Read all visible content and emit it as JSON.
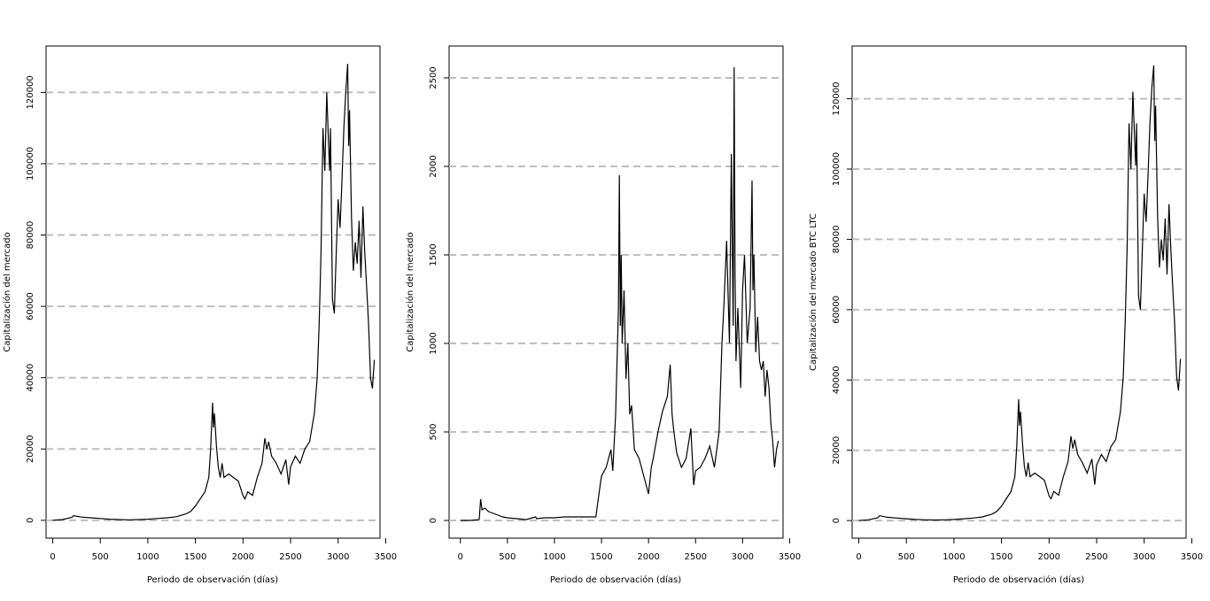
{
  "chart_data": [
    {
      "type": "line",
      "xlabel": "Periodo de observación (días)",
      "ylabel": "Capitalización del mercado",
      "xlim": [
        -70,
        3440
      ],
      "ylim": [
        -5000,
        133000
      ],
      "x_ticks": [
        0,
        500,
        1000,
        1500,
        2000,
        2500,
        3000,
        3500
      ],
      "x_tick_labels": [
        "0",
        "500",
        "1000",
        "1500",
        "2000",
        "2500",
        "3000",
        "3500"
      ],
      "y_ticks": [
        0,
        20000,
        40000,
        60000,
        80000,
        100000,
        120000
      ],
      "y_tick_labels": [
        "0",
        "20000",
        "40000",
        "60000",
        "80000",
        "100000",
        "120000"
      ],
      "grid": "horizontal dashed",
      "series": [
        {
          "color": "#000000",
          "x": [
            0,
            100,
            200,
            220,
            300,
            400,
            500,
            600,
            700,
            800,
            900,
            1000,
            1100,
            1200,
            1300,
            1400,
            1450,
            1500,
            1550,
            1600,
            1640,
            1660,
            1680,
            1690,
            1700,
            1720,
            1740,
            1760,
            1780,
            1800,
            1850,
            1900,
            1950,
            2000,
            2020,
            2050,
            2100,
            2150,
            2200,
            2230,
            2250,
            2270,
            2300,
            2350,
            2400,
            2450,
            2480,
            2500,
            2550,
            2600,
            2650,
            2700,
            2750,
            2780,
            2800,
            2820,
            2840,
            2860,
            2880,
            2900,
            2910,
            2920,
            2940,
            2960,
            2980,
            3000,
            3020,
            3040,
            3060,
            3080,
            3100,
            3110,
            3120,
            3140,
            3160,
            3180,
            3200,
            3220,
            3240,
            3260,
            3280,
            3300,
            3320,
            3340,
            3360,
            3380
          ],
          "y": [
            0,
            200,
            800,
            1300,
            900,
            700,
            500,
            300,
            200,
            150,
            200,
            300,
            500,
            700,
            1000,
            1800,
            2500,
            4000,
            6000,
            8000,
            12000,
            20000,
            33000,
            26000,
            30000,
            21000,
            15000,
            12000,
            16000,
            12000,
            13000,
            12000,
            11000,
            7000,
            6000,
            8000,
            7000,
            12000,
            16000,
            23000,
            20000,
            22000,
            18000,
            16000,
            13000,
            17000,
            10000,
            15000,
            18000,
            16000,
            20000,
            22000,
            30000,
            40000,
            55000,
            75000,
            110000,
            98000,
            120000,
            105000,
            98000,
            110000,
            62000,
            58000,
            75000,
            90000,
            82000,
            95000,
            110000,
            120000,
            128000,
            105000,
            115000,
            85000,
            70000,
            78000,
            72000,
            84000,
            68000,
            88000,
            75000,
            65000,
            55000,
            40000,
            37000,
            45000
          ]
        }
      ]
    },
    {
      "type": "line",
      "xlabel": "Periodo de observación (días)",
      "ylabel": "Capitalización del mercado",
      "xlim": [
        -120,
        3430
      ],
      "ylim": [
        -100,
        2680
      ],
      "x_ticks": [
        0,
        500,
        1000,
        1500,
        2000,
        2500,
        3000,
        3500
      ],
      "x_tick_labels": [
        "0",
        "500",
        "1000",
        "1500",
        "2000",
        "2500",
        "3000",
        "3500"
      ],
      "y_ticks": [
        0,
        500,
        1000,
        1500,
        2000,
        2500
      ],
      "y_tick_labels": [
        "0",
        "500",
        "1000",
        "1500",
        "2000",
        "2500"
      ],
      "grid": "horizontal dashed",
      "series": [
        {
          "color": "#000000",
          "x": [
            0,
            100,
            200,
            215,
            230,
            260,
            300,
            350,
            400,
            450,
            500,
            600,
            700,
            800,
            810,
            900,
            1000,
            1100,
            1200,
            1300,
            1400,
            1440,
            1460,
            1500,
            1550,
            1600,
            1620,
            1650,
            1680,
            1690,
            1700,
            1710,
            1720,
            1740,
            1760,
            1780,
            1800,
            1820,
            1850,
            1900,
            1950,
            2000,
            2030,
            2050,
            2100,
            2150,
            2200,
            2230,
            2250,
            2270,
            2300,
            2350,
            2400,
            2450,
            2480,
            2500,
            2550,
            2600,
            2650,
            2700,
            2750,
            2780,
            2800,
            2830,
            2860,
            2880,
            2900,
            2910,
            2920,
            2930,
            2950,
            2980,
            3000,
            3020,
            3050,
            3080,
            3100,
            3110,
            3120,
            3140,
            3160,
            3180,
            3200,
            3220,
            3240,
            3260,
            3280,
            3300,
            3320,
            3340,
            3360,
            3380
          ],
          "y": [
            0,
            0,
            5,
            120,
            60,
            70,
            50,
            40,
            30,
            20,
            15,
            10,
            5,
            20,
            10,
            15,
            15,
            20,
            20,
            20,
            20,
            20,
            100,
            250,
            300,
            400,
            280,
            600,
            1200,
            1950,
            1100,
            1500,
            1000,
            1300,
            800,
            1000,
            600,
            650,
            400,
            350,
            250,
            150,
            300,
            350,
            500,
            620,
            700,
            880,
            600,
            500,
            380,
            300,
            350,
            520,
            200,
            280,
            300,
            350,
            420,
            300,
            500,
            1000,
            1200,
            1580,
            1000,
            2070,
            1100,
            2560,
            1400,
            900,
            1200,
            750,
            1300,
            1500,
            1000,
            1200,
            1920,
            1300,
            1500,
            950,
            1150,
            900,
            850,
            900,
            700,
            850,
            750,
            550,
            450,
            300,
            400,
            450
          ]
        }
      ]
    },
    {
      "type": "line",
      "xlabel": "Periodo de observación (días)",
      "ylabel": "Capitalización del mercado BTC LTC",
      "xlim": [
        -70,
        3440
      ],
      "ylim": [
        -5000,
        135000
      ],
      "x_ticks": [
        0,
        500,
        1000,
        1500,
        2000,
        2500,
        3000,
        3500
      ],
      "x_tick_labels": [
        "0",
        "500",
        "1000",
        "1500",
        "2000",
        "2500",
        "3000",
        "3500"
      ],
      "y_ticks": [
        0,
        20000,
        40000,
        60000,
        80000,
        100000,
        120000
      ],
      "y_tick_labels": [
        "0",
        "20000",
        "40000",
        "60000",
        "80000",
        "100000",
        "120000"
      ],
      "grid": "horizontal dashed",
      "series": [
        {
          "color": "#000000",
          "x": [
            0,
            100,
            200,
            220,
            300,
            400,
            500,
            600,
            700,
            800,
            900,
            1000,
            1100,
            1200,
            1300,
            1400,
            1450,
            1500,
            1550,
            1600,
            1640,
            1660,
            1680,
            1690,
            1700,
            1720,
            1740,
            1760,
            1780,
            1800,
            1850,
            1900,
            1950,
            2000,
            2020,
            2050,
            2100,
            2150,
            2200,
            2230,
            2250,
            2270,
            2300,
            2350,
            2400,
            2450,
            2480,
            2500,
            2550,
            2600,
            2650,
            2700,
            2750,
            2780,
            2800,
            2820,
            2840,
            2860,
            2880,
            2900,
            2910,
            2920,
            2940,
            2960,
            2980,
            3000,
            3020,
            3040,
            3060,
            3080,
            3100,
            3110,
            3120,
            3140,
            3160,
            3180,
            3200,
            3220,
            3240,
            3260,
            3280,
            3300,
            3320,
            3340,
            3360,
            3380
          ],
          "y": [
            0,
            200,
            800,
            1400,
            950,
            720,
            520,
            310,
            210,
            170,
            210,
            320,
            520,
            720,
            1050,
            1850,
            2600,
            4100,
            6200,
            8300,
            12500,
            21000,
            34500,
            27000,
            31000,
            22000,
            15500,
            12500,
            16500,
            12500,
            13500,
            12500,
            11500,
            7000,
            6200,
            8300,
            7200,
            12500,
            16800,
            24000,
            20500,
            23000,
            18800,
            16500,
            13500,
            17500,
            10200,
            15800,
            18800,
            16800,
            21000,
            23000,
            31000,
            41000,
            57000,
            77000,
            113000,
            100000,
            122000,
            108000,
            101000,
            113000,
            64000,
            60000,
            77000,
            93000,
            85000,
            98000,
            113000,
            123000,
            129500,
            108000,
            118000,
            87000,
            72000,
            80000,
            74000,
            86000,
            70000,
            90000,
            77000,
            66000,
            56000,
            41000,
            37000,
            46000
          ]
        }
      ]
    }
  ]
}
